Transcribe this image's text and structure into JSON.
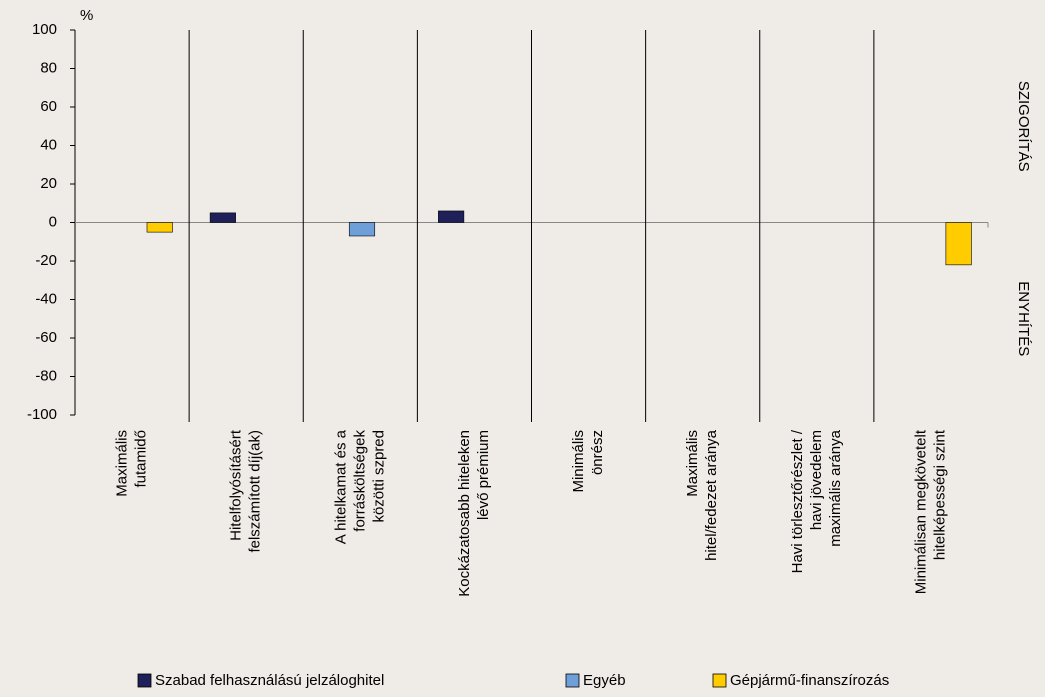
{
  "chart_data": {
    "type": "bar",
    "y_unit": "%",
    "side_labels": [
      "SZIGORÍTÁS",
      "ENYHÍTÉS"
    ],
    "categories": [
      [
        "Maximális",
        "futamidő"
      ],
      [
        "Hitelfolyósításért",
        "felszámított díj(ak)"
      ],
      [
        "A hitelkamat és a",
        "forrásköltségek",
        "közötti szpred"
      ],
      [
        "Kockázatosabb hiteleken",
        "lévő prémium"
      ],
      [
        "Minimális",
        "önrész"
      ],
      [
        "Maximális",
        "hitel/fedezet aránya"
      ],
      [
        "Havi törlesztőrészlet /",
        "havi jövedelem",
        "maximális aránya"
      ],
      [
        "Minimálisan megkövetelt",
        "hitelképességi szint"
      ]
    ],
    "series": [
      {
        "name": "Szabad felhasználású jelzáloghitel",
        "color": "#1f1f5a",
        "values": [
          0,
          5,
          0,
          6,
          0,
          0,
          0,
          0
        ]
      },
      {
        "name": "Egyéb",
        "color": "#6f9fd8",
        "values": [
          0,
          0,
          -7,
          0,
          0,
          0,
          0,
          0
        ]
      },
      {
        "name": "Gépjármű-finanszírozás",
        "color": "#ffcc00",
        "values": [
          -5,
          0,
          0,
          0,
          0,
          0,
          0,
          -22
        ]
      }
    ],
    "ylim": [
      -100,
      100
    ],
    "yticks": [
      -100,
      -80,
      -60,
      -40,
      -20,
      0,
      20,
      40,
      60,
      80,
      100
    ],
    "group_separators": true
  }
}
